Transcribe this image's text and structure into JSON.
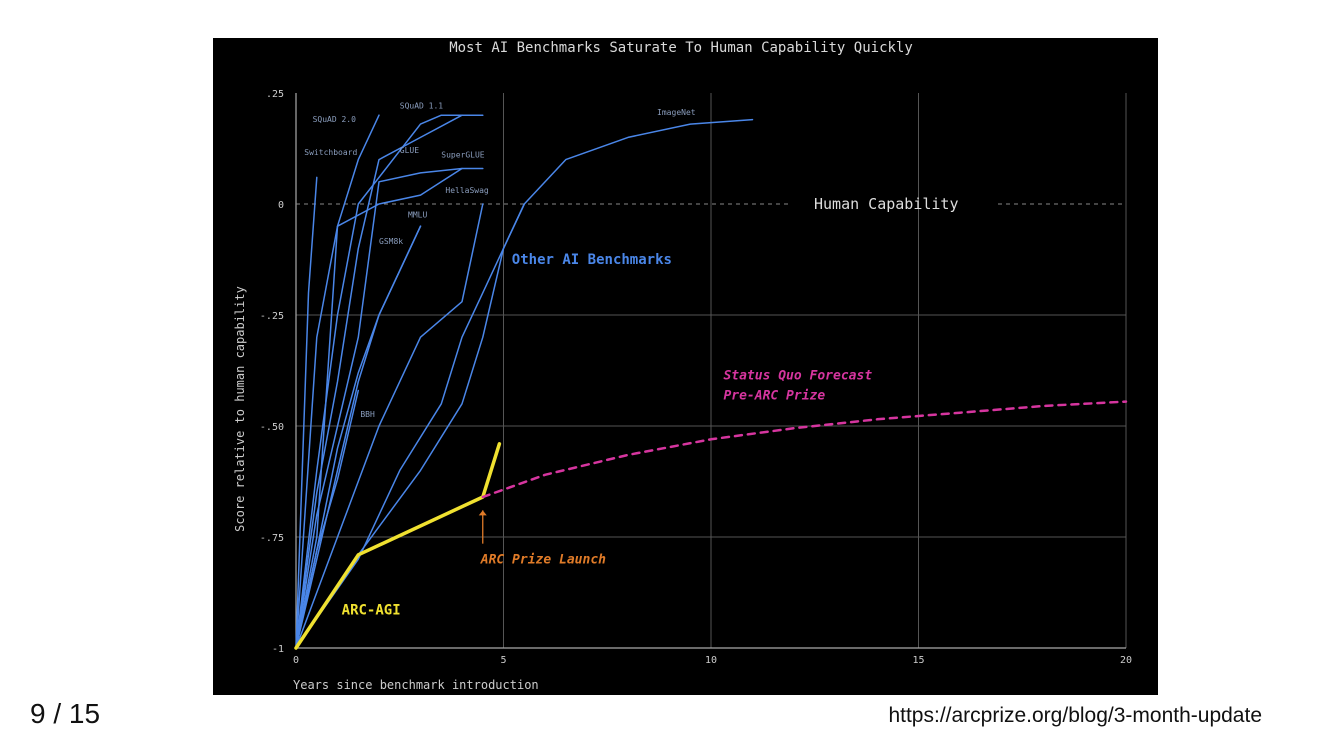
{
  "page": {
    "counter": "9 / 15",
    "source_url": "https://arcprize.org/blog/3-month-update"
  },
  "chart_data": {
    "type": "line",
    "title": "Most AI Benchmarks Saturate To Human Capability Quickly",
    "xlabel": "Years since benchmark introduction",
    "ylabel": "Score relative to human capability",
    "xlim": [
      0,
      20
    ],
    "ylim": [
      -1,
      0.25
    ],
    "x_ticks": [
      0,
      5,
      10,
      15,
      20
    ],
    "x_tick_labels": [
      "0",
      "5",
      "10",
      "15",
      "20"
    ],
    "y_ticks": [
      0.25,
      0,
      -0.25,
      -0.5,
      -0.75,
      -1
    ],
    "y_tick_labels": [
      ".25",
      "0",
      "-.25",
      "-.50",
      "-.75",
      "-1"
    ],
    "grid": true,
    "colors": {
      "benchmarks": "#4a86e8",
      "arc_agi": "#f0e130",
      "forecast": "#d6359f",
      "launch": "#e07b28",
      "human": "#cccccc",
      "axis_text": "#cccccc",
      "grid": "#555555"
    },
    "reference_line": {
      "y": 0,
      "label": "Human Capability"
    },
    "group_label": "Other AI Benchmarks",
    "series": [
      {
        "name": "Switchboard",
        "x": [
          0,
          0.3,
          0.5
        ],
        "y": [
          -1,
          -0.2,
          0.06
        ]
      },
      {
        "name": "SQuAD 2.0",
        "x": [
          0,
          0.5,
          1,
          1.5,
          2
        ],
        "y": [
          -1,
          -0.3,
          -0.05,
          0.1,
          0.2
        ]
      },
      {
        "name": "SQuAD 1.1",
        "x": [
          0,
          0.5,
          1,
          1.5,
          2.5,
          3,
          3.5,
          4,
          4.5
        ],
        "y": [
          -1,
          -0.6,
          -0.25,
          0,
          0.12,
          0.18,
          0.2,
          0.2,
          0.2
        ]
      },
      {
        "name": "GLUE",
        "x": [
          0,
          0.5,
          1,
          1.5,
          2,
          3,
          4
        ],
        "y": [
          -1,
          -0.65,
          -0.4,
          -0.1,
          0.1,
          0.15,
          0.2
        ]
      },
      {
        "name": "SuperGLUE",
        "x": [
          0,
          0.5,
          1.5,
          2,
          3,
          4,
          4.5
        ],
        "y": [
          -1,
          -0.7,
          -0.3,
          0.05,
          0.07,
          0.08,
          0.08
        ]
      },
      {
        "name": "HellaSwag",
        "x": [
          0,
          0.5,
          1,
          2,
          3,
          3.5,
          4
        ],
        "y": [
          -1,
          -0.75,
          -0.05,
          0,
          0.02,
          0.05,
          0.08
        ]
      },
      {
        "name": "MMLU",
        "x": [
          0,
          0.5,
          1,
          1.5,
          2,
          2.5,
          3
        ],
        "y": [
          -1,
          -0.8,
          -0.6,
          -0.4,
          -0.25,
          -0.15,
          -0.05
        ]
      },
      {
        "name": "GSM8k",
        "x": [
          0,
          0.5,
          1,
          1.5,
          2,
          2.5,
          3
        ],
        "y": [
          -1,
          -0.78,
          -0.55,
          -0.38,
          -0.25,
          -0.15,
          -0.05
        ]
      },
      {
        "name": "BBH",
        "x": [
          0,
          0.5,
          1,
          1.5
        ],
        "y": [
          -1,
          -0.78,
          -0.62,
          -0.42
        ]
      },
      {
        "name": "",
        "x": [
          0,
          1,
          2,
          3,
          4,
          4.5
        ],
        "y": [
          -1,
          -0.75,
          -0.5,
          -0.3,
          -0.22,
          0
        ]
      },
      {
        "name": "",
        "x": [
          0,
          1.5,
          2.5,
          3.5,
          4,
          4.5,
          5,
          5.5
        ],
        "y": [
          -1,
          -0.8,
          -0.6,
          -0.45,
          -0.3,
          -0.2,
          -0.1,
          0
        ]
      },
      {
        "name": "ImageNet",
        "x": [
          0,
          1.5,
          3,
          4,
          4.5,
          5,
          5.5,
          6.5,
          8,
          9.5,
          11
        ],
        "y": [
          -1,
          -0.79,
          -0.6,
          -0.45,
          -0.3,
          -0.1,
          0,
          0.1,
          0.15,
          0.18,
          0.19
        ]
      },
      {
        "name": "ARC-AGI",
        "x": [
          0,
          1.5,
          4.5,
          4.9
        ],
        "y": [
          -1,
          -0.79,
          -0.66,
          -0.54
        ]
      },
      {
        "name": "",
        "x": [
          4.5,
          6,
          8,
          10,
          12,
          14,
          16,
          18,
          20
        ],
        "y": [
          -0.66,
          -0.61,
          -0.565,
          -0.53,
          -0.505,
          -0.485,
          -0.47,
          -0.455,
          -0.445
        ]
      }
    ],
    "annotations": {
      "arc_agi": "ARC-AGI",
      "launch": {
        "text": "ARC Prize Launch",
        "x": 4.5
      },
      "forecast_line1": "Status Quo Forecast",
      "forecast_line2": "Pre-ARC Prize"
    }
  }
}
